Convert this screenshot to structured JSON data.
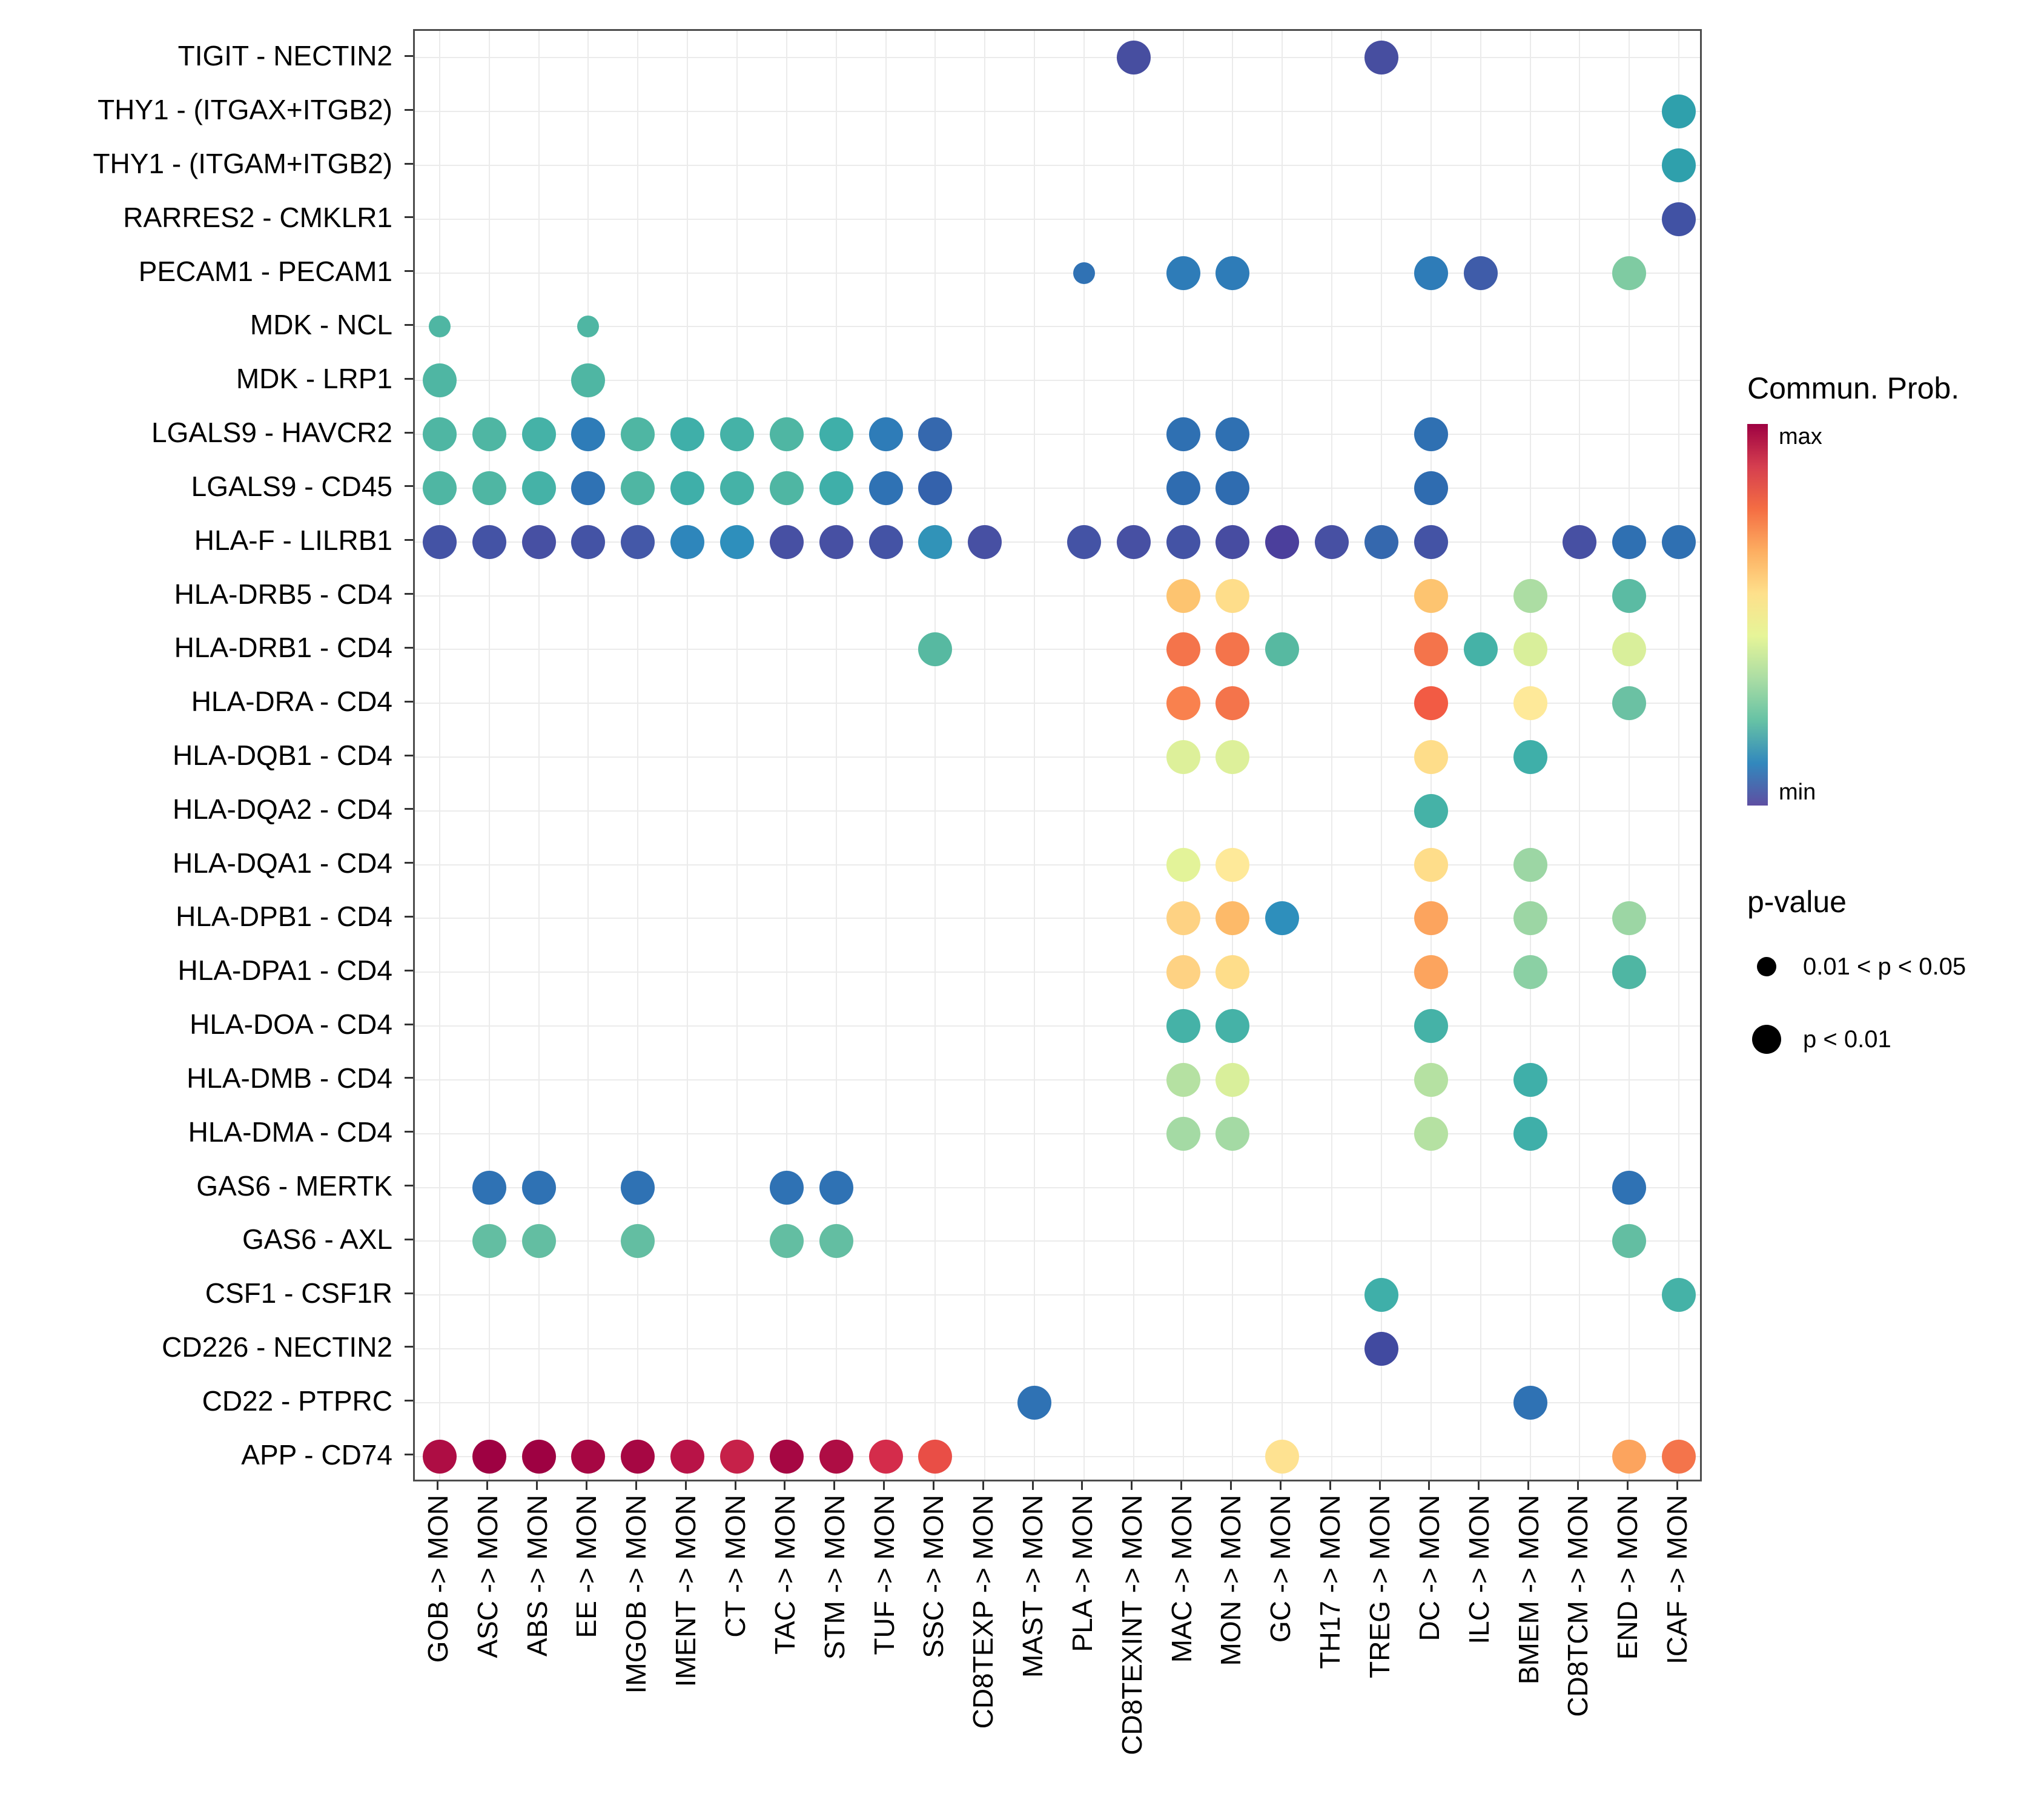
{
  "figure": {
    "background": "#ffffff"
  },
  "legend": {
    "color_title": "Commun. Prob.",
    "max_label": "max",
    "min_label": "min",
    "gradient": [
      "#9E0142",
      "#D53E4F",
      "#F46D43",
      "#FDAE61",
      "#FEE08B",
      "#E6F598",
      "#ABDDA4",
      "#66C2A5",
      "#3288BD",
      "#5E4FA2"
    ],
    "pvalue_title": "p-value",
    "pvalue_entries": [
      {
        "label": "0.01 < p < 0.05",
        "size": "small"
      },
      {
        "label": "p < 0.01",
        "size": "large"
      }
    ]
  },
  "chart_data": {
    "type": "bubble",
    "title": "",
    "xlabel": "",
    "ylabel": "",
    "grid": true,
    "legend_position": "right",
    "x_axis": {
      "labels": [
        "GOB -> MON",
        "ASC -> MON",
        "ABS -> MON",
        "EE -> MON",
        "IMGOB -> MON",
        "IMENT -> MON",
        "CT -> MON",
        "TAC -> MON",
        "STM -> MON",
        "TUF -> MON",
        "SSC -> MON",
        "CD8TEXP -> MON",
        "MAST -> MON",
        "PLA -> MON",
        "CD8TEXINT -> MON",
        "MAC -> MON",
        "MON -> MON",
        "GC -> MON",
        "TH17 -> MON",
        "TREG -> MON",
        "DC -> MON",
        "ILC -> MON",
        "BMEM -> MON",
        "CD8TCM -> MON",
        "END -> MON",
        "ICAF -> MON"
      ]
    },
    "y_axis": {
      "labels": [
        "TIGIT - NECTIN2",
        "THY1 - (ITGAX+ITGB2)",
        "THY1 - (ITGAM+ITGB2)",
        "RARRES2 - CMKLR1",
        "PECAM1 - PECAM1",
        "MDK - NCL",
        "MDK - LRP1",
        "LGALS9 - HAVCR2",
        "LGALS9 - CD45",
        "HLA-F - LILRB1",
        "HLA-DRB5 - CD4",
        "HLA-DRB1 - CD4",
        "HLA-DRA - CD4",
        "HLA-DQB1 - CD4",
        "HLA-DQA2 - CD4",
        "HLA-DQA1 - CD4",
        "HLA-DPB1 - CD4",
        "HLA-DPA1 - CD4",
        "HLA-DOA - CD4",
        "HLA-DMB - CD4",
        "HLA-DMA - CD4",
        "GAS6 - MERTK",
        "GAS6 - AXL",
        "CSF1 - CSF1R",
        "CD226 - NECTIN2",
        "CD22 - PTPRC",
        "APP - CD74"
      ]
    },
    "point_format": [
      "row_index",
      "col_index",
      "color",
      "size: l = p < 0.01, s = 0.01 < p < 0.05"
    ],
    "points": [
      [
        0,
        14,
        "#474EA0",
        "l"
      ],
      [
        0,
        19,
        "#474EA0",
        "l"
      ],
      [
        1,
        25,
        "#2FA0AC",
        "l"
      ],
      [
        2,
        25,
        "#2FA0AC",
        "l"
      ],
      [
        3,
        25,
        "#4152A4",
        "l"
      ],
      [
        4,
        13,
        "#3072B4",
        "s"
      ],
      [
        4,
        15,
        "#2E7CB8",
        "l"
      ],
      [
        4,
        16,
        "#2E7CB8",
        "l"
      ],
      [
        4,
        20,
        "#2E7CB8",
        "l"
      ],
      [
        4,
        21,
        "#3F5CA9",
        "l"
      ],
      [
        4,
        24,
        "#7FCBA2",
        "l"
      ],
      [
        5,
        0,
        "#4FB6A3",
        "s"
      ],
      [
        5,
        3,
        "#4FB6A3",
        "s"
      ],
      [
        6,
        0,
        "#4FB6A3",
        "l"
      ],
      [
        6,
        3,
        "#4FB6A3",
        "l"
      ],
      [
        7,
        0,
        "#4FB6A3",
        "l"
      ],
      [
        7,
        1,
        "#4FB6A3",
        "l"
      ],
      [
        7,
        2,
        "#45B2A7",
        "l"
      ],
      [
        7,
        3,
        "#2E7CB8",
        "l"
      ],
      [
        7,
        4,
        "#4FB6A3",
        "l"
      ],
      [
        7,
        5,
        "#3FAFA9",
        "l"
      ],
      [
        7,
        6,
        "#45B2A7",
        "l"
      ],
      [
        7,
        7,
        "#4FB6A3",
        "l"
      ],
      [
        7,
        8,
        "#3FAFA9",
        "l"
      ],
      [
        7,
        9,
        "#2E7CB8",
        "l"
      ],
      [
        7,
        10,
        "#3568AE",
        "l"
      ],
      [
        7,
        15,
        "#2F70B2",
        "l"
      ],
      [
        7,
        16,
        "#2F70B2",
        "l"
      ],
      [
        7,
        20,
        "#2F70B2",
        "l"
      ],
      [
        8,
        0,
        "#4FB6A3",
        "l"
      ],
      [
        8,
        1,
        "#4FB6A3",
        "l"
      ],
      [
        8,
        2,
        "#45B2A7",
        "l"
      ],
      [
        8,
        3,
        "#2F72B4",
        "l"
      ],
      [
        8,
        4,
        "#4FB6A3",
        "l"
      ],
      [
        8,
        5,
        "#3FAFA9",
        "l"
      ],
      [
        8,
        6,
        "#45B2A7",
        "l"
      ],
      [
        8,
        7,
        "#4FB6A3",
        "l"
      ],
      [
        8,
        8,
        "#3FAFA9",
        "l"
      ],
      [
        8,
        9,
        "#2F72B4",
        "l"
      ],
      [
        8,
        10,
        "#3462AC",
        "l"
      ],
      [
        8,
        15,
        "#2F6CB0",
        "l"
      ],
      [
        8,
        16,
        "#2F6CB0",
        "l"
      ],
      [
        8,
        20,
        "#2F6CB0",
        "l"
      ],
      [
        9,
        0,
        "#4453A5",
        "l"
      ],
      [
        9,
        1,
        "#4453A5",
        "l"
      ],
      [
        9,
        2,
        "#4750A3",
        "l"
      ],
      [
        9,
        3,
        "#4453A5",
        "l"
      ],
      [
        9,
        4,
        "#4458A8",
        "l"
      ],
      [
        9,
        5,
        "#2E86BB",
        "l"
      ],
      [
        9,
        6,
        "#2E8FBC",
        "l"
      ],
      [
        9,
        7,
        "#4750A3",
        "l"
      ],
      [
        9,
        8,
        "#4750A3",
        "l"
      ],
      [
        9,
        9,
        "#4453A5",
        "l"
      ],
      [
        9,
        10,
        "#3193B8",
        "l"
      ],
      [
        9,
        11,
        "#4750A3",
        "l"
      ],
      [
        9,
        13,
        "#4453A5",
        "l"
      ],
      [
        9,
        14,
        "#4750A3",
        "l"
      ],
      [
        9,
        15,
        "#4453A5",
        "l"
      ],
      [
        9,
        16,
        "#474CA1",
        "l"
      ],
      [
        9,
        17,
        "#4B3F9C",
        "l"
      ],
      [
        9,
        18,
        "#4750A3",
        "l"
      ],
      [
        9,
        19,
        "#3568AE",
        "l"
      ],
      [
        9,
        20,
        "#4453A5",
        "l"
      ],
      [
        9,
        23,
        "#4750A3",
        "l"
      ],
      [
        9,
        24,
        "#2F70B2",
        "l"
      ],
      [
        9,
        25,
        "#2F70B2",
        "l"
      ],
      [
        10,
        15,
        "#FDC470",
        "l"
      ],
      [
        10,
        16,
        "#FEDD8A",
        "l"
      ],
      [
        10,
        20,
        "#FDC470",
        "l"
      ],
      [
        10,
        22,
        "#ACDDA3",
        "l"
      ],
      [
        10,
        24,
        "#5BBBA3",
        "l"
      ],
      [
        11,
        10,
        "#57B9A1",
        "l"
      ],
      [
        11,
        15,
        "#F4744B",
        "l"
      ],
      [
        11,
        16,
        "#F4744B",
        "l"
      ],
      [
        11,
        17,
        "#57B9A1",
        "l"
      ],
      [
        11,
        20,
        "#F4744B",
        "l"
      ],
      [
        11,
        21,
        "#45B2A7",
        "l"
      ],
      [
        11,
        22,
        "#D9EF9B",
        "l"
      ],
      [
        11,
        24,
        "#D9EF9B",
        "l"
      ],
      [
        12,
        15,
        "#F9814E",
        "l"
      ],
      [
        12,
        16,
        "#F4744B",
        "l"
      ],
      [
        12,
        20,
        "#F25B44",
        "l"
      ],
      [
        12,
        22,
        "#FEE999",
        "l"
      ],
      [
        12,
        24,
        "#6BC1A3",
        "l"
      ],
      [
        13,
        15,
        "#DDF09A",
        "l"
      ],
      [
        13,
        16,
        "#DDF09A",
        "l"
      ],
      [
        13,
        20,
        "#FEDD8A",
        "l"
      ],
      [
        13,
        22,
        "#3FAFA9",
        "l"
      ],
      [
        14,
        20,
        "#45B2A7",
        "l"
      ],
      [
        15,
        15,
        "#E3F399",
        "l"
      ],
      [
        15,
        16,
        "#FEE999",
        "l"
      ],
      [
        15,
        20,
        "#FEDD8A",
        "l"
      ],
      [
        15,
        22,
        "#9CD6A4",
        "l"
      ],
      [
        16,
        15,
        "#FED283",
        "l"
      ],
      [
        16,
        16,
        "#FDBA69",
        "l"
      ],
      [
        16,
        17,
        "#2E8FBC",
        "l"
      ],
      [
        16,
        20,
        "#FCA45E",
        "l"
      ],
      [
        16,
        22,
        "#9CD6A4",
        "l"
      ],
      [
        16,
        24,
        "#9CD6A4",
        "l"
      ],
      [
        17,
        15,
        "#FED283",
        "l"
      ],
      [
        17,
        16,
        "#FEDD8A",
        "l"
      ],
      [
        17,
        20,
        "#FCA45E",
        "l"
      ],
      [
        17,
        22,
        "#8BD0A4",
        "l"
      ],
      [
        17,
        24,
        "#4FB6A3",
        "l"
      ],
      [
        18,
        15,
        "#45B2A7",
        "l"
      ],
      [
        18,
        16,
        "#45B2A7",
        "l"
      ],
      [
        18,
        20,
        "#45B2A7",
        "l"
      ],
      [
        19,
        15,
        "#B5E1A2",
        "l"
      ],
      [
        19,
        16,
        "#D9EF9B",
        "l"
      ],
      [
        19,
        20,
        "#B5E1A2",
        "l"
      ],
      [
        19,
        22,
        "#3FAFA9",
        "l"
      ],
      [
        20,
        15,
        "#A4DAA4",
        "l"
      ],
      [
        20,
        16,
        "#A4DAA4",
        "l"
      ],
      [
        20,
        20,
        "#B5E1A2",
        "l"
      ],
      [
        20,
        22,
        "#3FAFA9",
        "l"
      ],
      [
        21,
        1,
        "#2F72B4",
        "l"
      ],
      [
        21,
        2,
        "#2F72B4",
        "l"
      ],
      [
        21,
        4,
        "#2F72B4",
        "l"
      ],
      [
        21,
        7,
        "#2F72B4",
        "l"
      ],
      [
        21,
        8,
        "#2F72B4",
        "l"
      ],
      [
        21,
        24,
        "#2F72B4",
        "l"
      ],
      [
        22,
        1,
        "#63BEA2",
        "l"
      ],
      [
        22,
        2,
        "#63BEA2",
        "l"
      ],
      [
        22,
        4,
        "#63BEA2",
        "l"
      ],
      [
        22,
        7,
        "#63BEA2",
        "l"
      ],
      [
        22,
        8,
        "#63BEA2",
        "l"
      ],
      [
        22,
        24,
        "#63BEA2",
        "l"
      ],
      [
        23,
        19,
        "#3FAFA9",
        "l"
      ],
      [
        23,
        25,
        "#45B2A7",
        "l"
      ],
      [
        24,
        19,
        "#414AA0",
        "l"
      ],
      [
        25,
        12,
        "#2F72B4",
        "l"
      ],
      [
        25,
        22,
        "#2F72B4",
        "l"
      ],
      [
        26,
        0,
        "#AE0D44",
        "l"
      ],
      [
        26,
        1,
        "#9E0142",
        "l"
      ],
      [
        26,
        2,
        "#9E0142",
        "l"
      ],
      [
        26,
        3,
        "#A60743",
        "l"
      ],
      [
        26,
        4,
        "#A60743",
        "l"
      ],
      [
        26,
        5,
        "#B81347",
        "l"
      ],
      [
        26,
        6,
        "#C62149",
        "l"
      ],
      [
        26,
        7,
        "#A60743",
        "l"
      ],
      [
        26,
        8,
        "#AE0D44",
        "l"
      ],
      [
        26,
        9,
        "#D42C4B",
        "l"
      ],
      [
        26,
        10,
        "#E94E46",
        "l"
      ],
      [
        26,
        17,
        "#FEE291",
        "l"
      ],
      [
        26,
        24,
        "#FCA45E",
        "l"
      ],
      [
        26,
        25,
        "#F4744B",
        "l"
      ]
    ]
  }
}
